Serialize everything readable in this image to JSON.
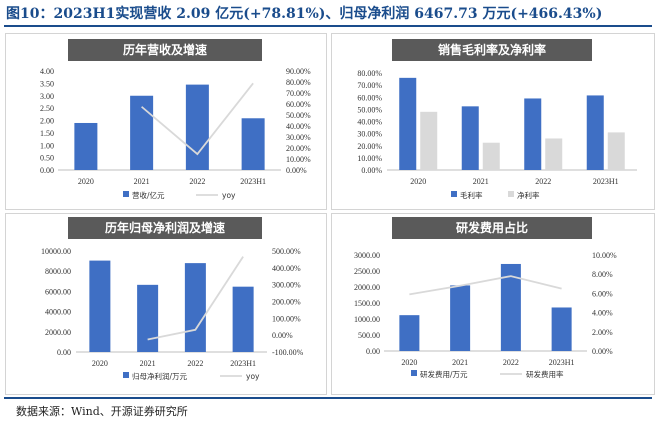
{
  "header": {
    "title": "图10：2023H1实现营收 2.09 亿元(+78.81%)、归母净利润 6467.73 万元(+466.43%)"
  },
  "footer": {
    "source": "数据来源：Wind、开源证券研究所"
  },
  "colors": {
    "title": "#1a4c8c",
    "bar": "#3f6fc4",
    "bar_secondary": "#d9d9d9",
    "line": "#d9d9d9",
    "banner": "#5a5a5a"
  },
  "chart_data": [
    {
      "type": "bar",
      "title": "历年营收及增速",
      "categories": [
        "2020",
        "2021",
        "2022",
        "2023H1"
      ],
      "series": [
        {
          "name": "营收/亿元",
          "kind": "bar",
          "axis": "left",
          "values": [
            1.9,
            3.0,
            3.45,
            2.09
          ]
        },
        {
          "name": "yoy",
          "kind": "line",
          "axis": "right",
          "values": [
            null,
            57.5,
            14.5,
            78.81
          ]
        }
      ],
      "left_axis": {
        "min": 0,
        "max": 4,
        "step": 0.5,
        "ticks": [
          "0.00",
          "0.50",
          "1.00",
          "1.50",
          "2.00",
          "2.50",
          "3.00",
          "3.50",
          "4.00"
        ]
      },
      "right_axis": {
        "min": 0,
        "max": 90,
        "step": 10,
        "ticks": [
          "0.00%",
          "10.00%",
          "20.00%",
          "30.00%",
          "40.00%",
          "50.00%",
          "60.00%",
          "70.00%",
          "80.00%",
          "90.00%"
        ]
      },
      "legend": [
        "营收/亿元",
        "yoy"
      ]
    },
    {
      "type": "bar",
      "title": "销售毛利率及净利率",
      "categories": [
        "2020",
        "2021",
        "2022",
        "2023H1"
      ],
      "series": [
        {
          "name": "毛利率",
          "kind": "bar",
          "axis": "left",
          "values": [
            76,
            52.5,
            59,
            61.5
          ]
        },
        {
          "name": "净利率",
          "kind": "bar2",
          "axis": "left",
          "values": [
            48,
            22.5,
            26,
            31
          ]
        }
      ],
      "left_axis": {
        "min": 0,
        "max": 80,
        "step": 10,
        "ticks": [
          "0.00%",
          "10.00%",
          "20.00%",
          "30.00%",
          "40.00%",
          "50.00%",
          "60.00%",
          "70.00%",
          "80.00%"
        ]
      },
      "legend": [
        "毛利率",
        "净利率"
      ]
    },
    {
      "type": "bar",
      "title": "历年归母净利润及增速",
      "categories": [
        "2020",
        "2021",
        "2022",
        "2023H1"
      ],
      "series": [
        {
          "name": "归母净利润/万元",
          "kind": "bar",
          "axis": "left",
          "values": [
            9050,
            6650,
            8800,
            6467.73
          ]
        },
        {
          "name": "yoy",
          "kind": "line",
          "axis": "right",
          "values": [
            null,
            -26,
            32,
            466.43
          ]
        }
      ],
      "left_axis": {
        "min": 0,
        "max": 10000,
        "step": 2000,
        "ticks": [
          "0.00",
          "2000.00",
          "4000.00",
          "6000.00",
          "8000.00",
          "10000.00"
        ]
      },
      "right_axis": {
        "min": -100,
        "max": 500,
        "step": 100,
        "ticks": [
          "-100.00%",
          "0.00%",
          "100.00%",
          "200.00%",
          "300.00%",
          "400.00%",
          "500.00%"
        ]
      },
      "legend": [
        "归母净利润/万元",
        "yoy"
      ]
    },
    {
      "type": "bar",
      "title": "研发费用占比",
      "categories": [
        "2020",
        "2021",
        "2022",
        "2023H1"
      ],
      "series": [
        {
          "name": "研发费用/万元",
          "kind": "bar",
          "axis": "left",
          "values": [
            1120,
            2050,
            2720,
            1360
          ]
        },
        {
          "name": "研发费用率",
          "kind": "line",
          "axis": "right",
          "values": [
            5.9,
            6.8,
            7.8,
            6.5
          ]
        }
      ],
      "left_axis": {
        "min": 0,
        "max": 3000,
        "step": 500,
        "ticks": [
          "0.00",
          "500.00",
          "1000.00",
          "1500.00",
          "2000.00",
          "2500.00",
          "3000.00"
        ]
      },
      "right_axis": {
        "min": 0,
        "max": 10,
        "step": 2,
        "ticks": [
          "0.00%",
          "2.00%",
          "4.00%",
          "6.00%",
          "8.00%",
          "10.00%"
        ]
      },
      "legend": [
        "研发费用/万元",
        "研发费用率"
      ]
    }
  ]
}
